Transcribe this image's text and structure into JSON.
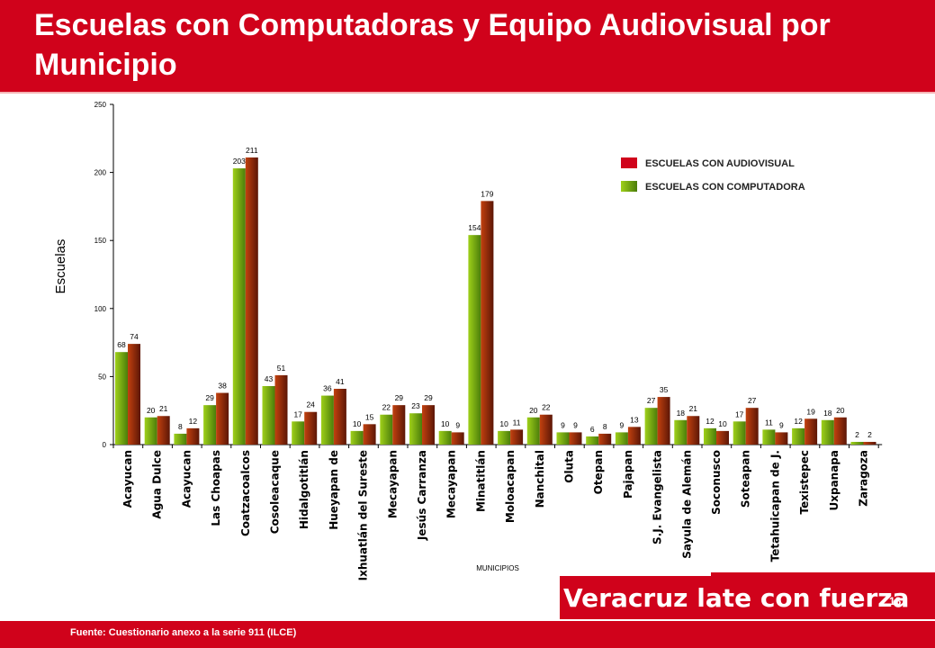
{
  "slide": {
    "title": "Escuelas con Computadoras y Equipo Audiovisual por Municipio",
    "source": "Fuente: Cuestionario anexo a la serie 911 (ILCE)",
    "slogan": "Veracruz late con fuerza",
    "page_number": "18"
  },
  "colors": {
    "header": "#d0021b",
    "computadora_light": "#9fd01a",
    "computadora_dark": "#4b7d0a",
    "audiovisual_light": "#c2410f",
    "audiovisual_dark": "#5c1606"
  },
  "chart_data": {
    "type": "bar",
    "title": "",
    "ylabel": "Escuelas",
    "xlabel": "MUNICIPIOS",
    "ylim": [
      0,
      250
    ],
    "yticks": [
      0,
      50,
      100,
      150,
      200,
      250
    ],
    "legend_position": "top-right",
    "grid": false,
    "categories": [
      "Acayucan",
      "Agua Dulce",
      "Acayucan",
      "Las Choapas",
      "Coatzacoalcos",
      "Cosoleacaque",
      "Hidalgotitlán",
      "Hueyapan de",
      "Ixhuatlán del Sureste",
      "Mecayapan",
      "Jesús Carranza",
      "Mecayapan",
      "Minatitlán",
      "Moloacapan",
      "Nanchital",
      "Oluta",
      "Otepan",
      "Pajapan",
      "S.J. Evangelista",
      "Sayula de Alemán",
      "Soconusco",
      "Soteapan",
      "Tetahuicapan de J.",
      "Texistepec",
      "Uxpanapa",
      "Zaragoza"
    ],
    "series": [
      {
        "name": "ESCUELAS CON COMPUTADORA",
        "values": [
          68,
          20,
          8,
          29,
          203,
          43,
          17,
          36,
          10,
          22,
          23,
          10,
          154,
          10,
          20,
          9,
          6,
          9,
          27,
          18,
          12,
          17,
          11,
          12,
          18,
          2
        ]
      },
      {
        "name": "ESCUELAS CON AUDIOVISUAL",
        "values": [
          74,
          21,
          12,
          38,
          211,
          51,
          24,
          41,
          15,
          29,
          29,
          9,
          179,
          11,
          22,
          9,
          8,
          13,
          35,
          21,
          10,
          27,
          9,
          19,
          20,
          2
        ]
      }
    ],
    "legend": [
      "ESCUELAS CON AUDIOVISUAL",
      "ESCUELAS CON COMPUTADORA"
    ]
  }
}
